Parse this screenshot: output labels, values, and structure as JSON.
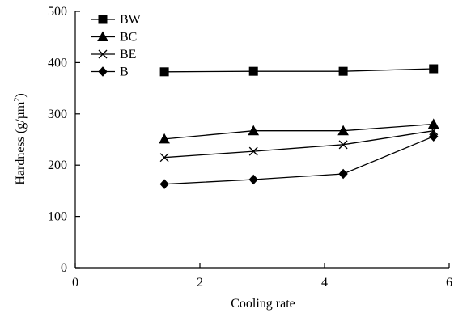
{
  "chart_data": {
    "type": "line",
    "title": "",
    "xlabel": "Cooling rate",
    "ylabel": "Hardness (g/µm",
    "ylabel_sup": "2",
    "ylabel_close": ")",
    "xlim": [
      0,
      6
    ],
    "ylim": [
      0,
      500
    ],
    "x_ticks": [
      0,
      2,
      4,
      6
    ],
    "y_ticks": [
      0,
      100,
      200,
      300,
      400,
      500
    ],
    "x_tick_labels": [
      "0",
      "2",
      "4",
      "6"
    ],
    "y_tick_labels": [
      "0",
      "100",
      "200",
      "300",
      "400",
      "500"
    ],
    "grid": false,
    "legend_position": "top-left",
    "x": [
      1.43,
      2.86,
      4.3,
      5.75
    ],
    "series": [
      {
        "name": "BW",
        "marker": "square",
        "values": [
          382,
          383,
          383,
          388
        ]
      },
      {
        "name": "BC",
        "marker": "triangle",
        "values": [
          251,
          267,
          267,
          280
        ]
      },
      {
        "name": "BE",
        "marker": "x",
        "values": [
          215,
          227,
          240,
          267
        ]
      },
      {
        "name": "B",
        "marker": "diamond",
        "values": [
          163,
          172,
          183,
          256
        ]
      }
    ]
  }
}
